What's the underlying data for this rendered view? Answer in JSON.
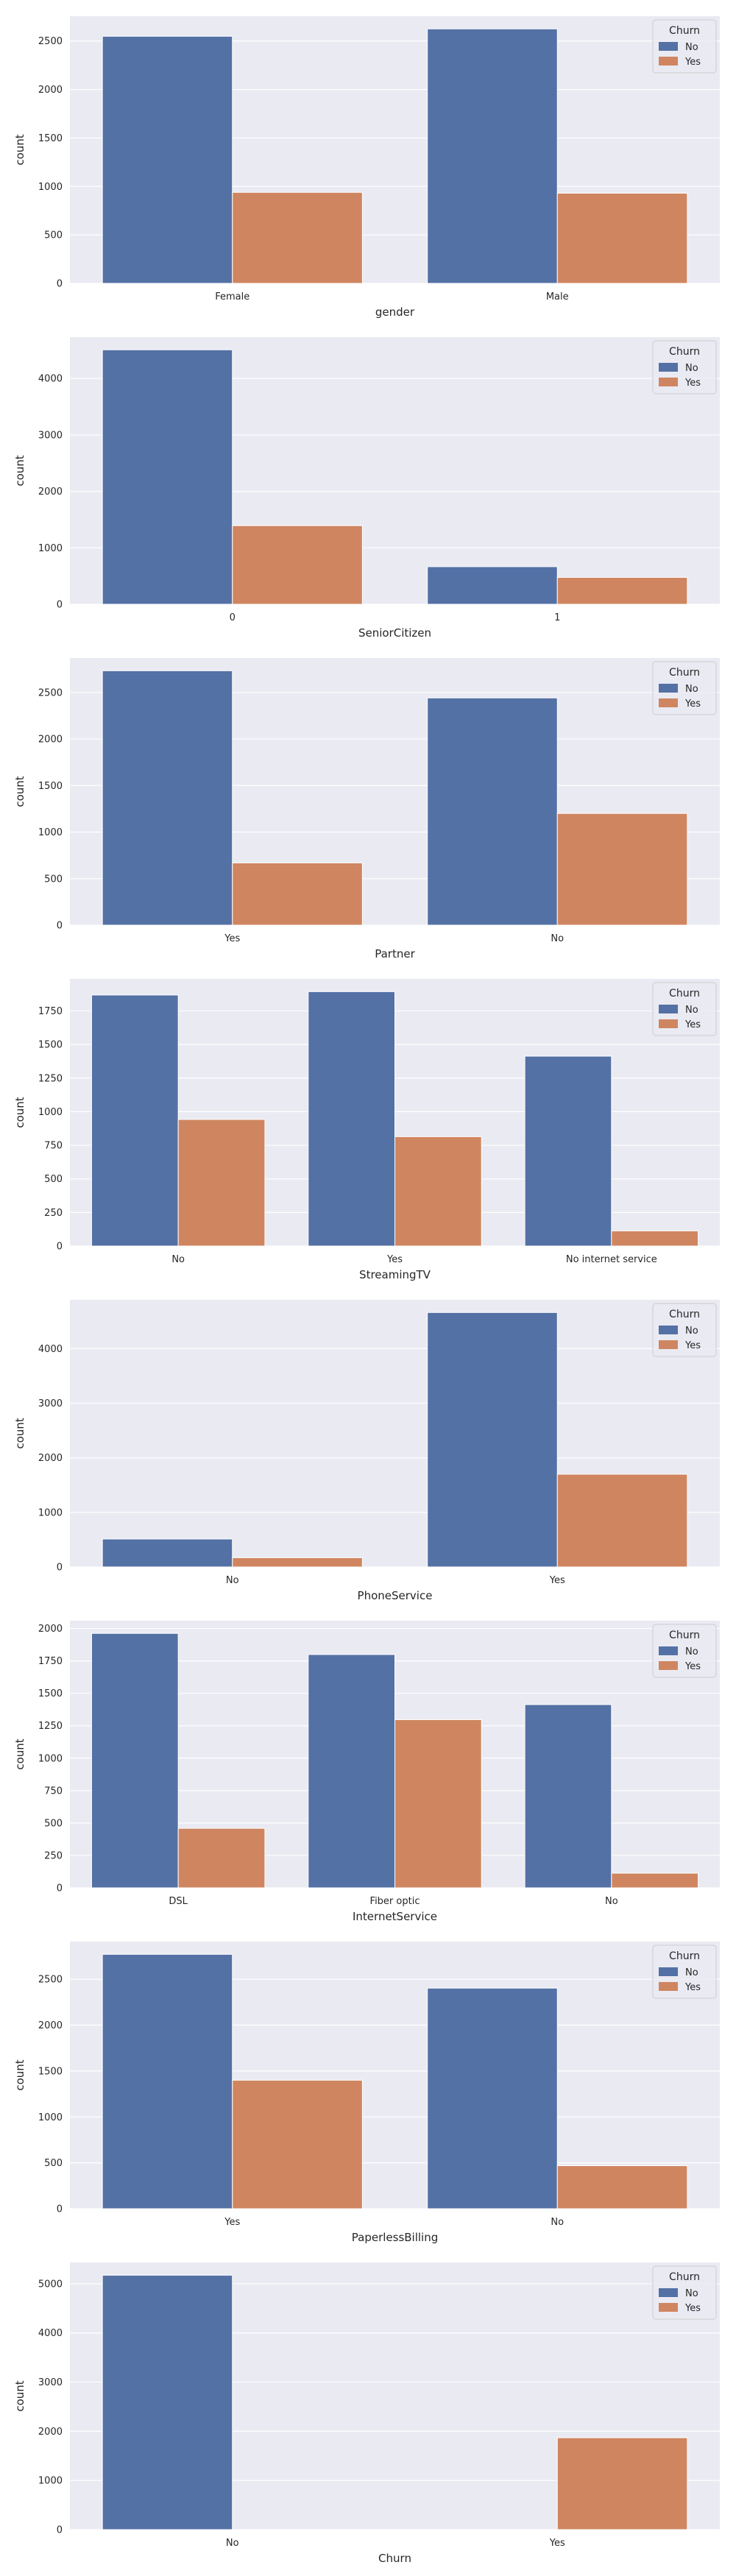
{
  "colors": {
    "No": "#5471a5",
    "Yes": "#cf8660",
    "background": "#eaeaf2",
    "grid": "#ffffff"
  },
  "chart_data": [
    {
      "type": "bar",
      "xlabel": "gender",
      "ylabel": "count",
      "categories": [
        "Female",
        "Male"
      ],
      "series": [
        {
          "name": "No",
          "values": [
            2549,
            2625
          ]
        },
        {
          "name": "Yes",
          "values": [
            939,
            930
          ]
        }
      ],
      "yticks": [
        0,
        500,
        1000,
        1500,
        2000,
        2500
      ],
      "ylim": [
        0,
        2756
      ],
      "legend": {
        "title": "Churn",
        "position": "top-right"
      },
      "grid": true
    },
    {
      "type": "bar",
      "xlabel": "SeniorCitizen",
      "ylabel": "count",
      "categories": [
        "0",
        "1"
      ],
      "series": [
        {
          "name": "No",
          "values": [
            4508,
            666
          ]
        },
        {
          "name": "Yes",
          "values": [
            1393,
            476
          ]
        }
      ],
      "yticks": [
        0,
        1000,
        2000,
        3000,
        4000
      ],
      "ylim": [
        0,
        4733
      ],
      "legend": {
        "title": "Churn",
        "position": "top-right"
      },
      "grid": true
    },
    {
      "type": "bar",
      "xlabel": "Partner",
      "ylabel": "count",
      "categories": [
        "Yes",
        "No"
      ],
      "series": [
        {
          "name": "No",
          "values": [
            2733,
            2441
          ]
        },
        {
          "name": "Yes",
          "values": [
            669,
            1200
          ]
        }
      ],
      "yticks": [
        0,
        500,
        1000,
        1500,
        2000,
        2500
      ],
      "ylim": [
        0,
        2870
      ],
      "legend": {
        "title": "Churn",
        "position": "top-right"
      },
      "grid": true
    },
    {
      "type": "bar",
      "xlabel": "StreamingTV",
      "ylabel": "count",
      "categories": [
        "No",
        "Yes",
        "No internet service"
      ],
      "series": [
        {
          "name": "No",
          "values": [
            1868,
            1893,
            1413
          ]
        },
        {
          "name": "Yes",
          "values": [
            942,
            814,
            113
          ]
        }
      ],
      "yticks": [
        0,
        250,
        500,
        750,
        1000,
        1250,
        1500,
        1750
      ],
      "ylim": [
        0,
        1988
      ],
      "legend": {
        "title": "Churn",
        "position": "top-right"
      },
      "grid": true
    },
    {
      "type": "bar",
      "xlabel": "PhoneService",
      "ylabel": "count",
      "categories": [
        "No",
        "Yes"
      ],
      "series": [
        {
          "name": "No",
          "values": [
            512,
            4662
          ]
        },
        {
          "name": "Yes",
          "values": [
            170,
            1699
          ]
        }
      ],
      "yticks": [
        0,
        1000,
        2000,
        3000,
        4000
      ],
      "ylim": [
        0,
        4895
      ],
      "legend": {
        "title": "Churn",
        "position": "top-right"
      },
      "grid": true
    },
    {
      "type": "bar",
      "xlabel": "InternetService",
      "ylabel": "count",
      "categories": [
        "DSL",
        "Fiber optic",
        "No"
      ],
      "series": [
        {
          "name": "No",
          "values": [
            1962,
            1799,
            1413
          ]
        },
        {
          "name": "Yes",
          "values": [
            459,
            1297,
            113
          ]
        }
      ],
      "yticks": [
        0,
        250,
        500,
        750,
        1000,
        1250,
        1500,
        1750,
        2000
      ],
      "ylim": [
        0,
        2060
      ],
      "legend": {
        "title": "Churn",
        "position": "top-right"
      },
      "grid": true
    },
    {
      "type": "bar",
      "xlabel": "PaperlessBilling",
      "ylabel": "count",
      "categories": [
        "Yes",
        "No"
      ],
      "series": [
        {
          "name": "No",
          "values": [
            2771,
            2403
          ]
        },
        {
          "name": "Yes",
          "values": [
            1400,
            469
          ]
        }
      ],
      "yticks": [
        0,
        500,
        1000,
        1500,
        2000,
        2500
      ],
      "ylim": [
        0,
        2910
      ],
      "legend": {
        "title": "Churn",
        "position": "top-right"
      },
      "grid": true
    },
    {
      "type": "bar",
      "xlabel": "Churn",
      "ylabel": "count",
      "categories": [
        "No",
        "Yes"
      ],
      "series": [
        {
          "name": "No",
          "values": [
            5174,
            0
          ]
        },
        {
          "name": "Yes",
          "values": [
            0,
            1869
          ]
        }
      ],
      "yticks": [
        0,
        1000,
        2000,
        3000,
        4000,
        5000
      ],
      "ylim": [
        0,
        5433
      ],
      "legend": {
        "title": "Churn",
        "position": "top-right"
      },
      "grid": true
    }
  ]
}
